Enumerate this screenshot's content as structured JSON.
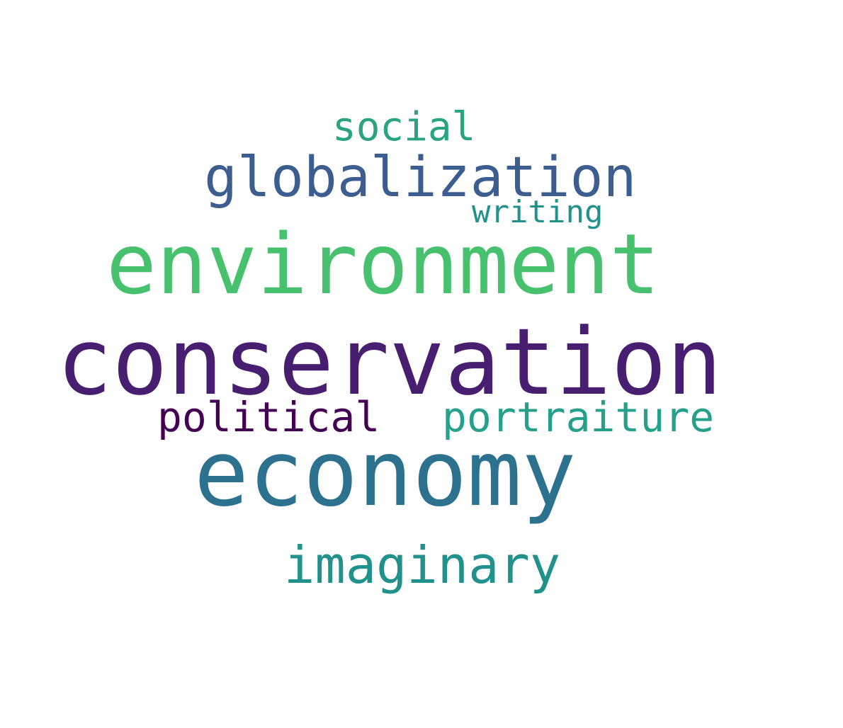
{
  "words": [
    {
      "text": "social",
      "color": "#2aa37f"
    },
    {
      "text": "globalization",
      "color": "#3b5d8f"
    },
    {
      "text": "writing",
      "color": "#21918c"
    },
    {
      "text": "environment",
      "color": "#48c16e"
    },
    {
      "text": "conservation",
      "color": "#481f70"
    },
    {
      "text": "political",
      "color": "#440154"
    },
    {
      "text": "portraiture",
      "color": "#25a18b"
    },
    {
      "text": "economy",
      "color": "#2c728e"
    },
    {
      "text": "imaginary",
      "color": "#21918c"
    }
  ]
}
